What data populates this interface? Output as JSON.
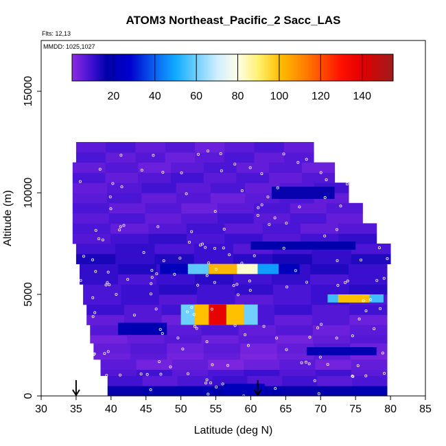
{
  "chart_data": {
    "type": "heatmap",
    "title": "ATOM3 Northeast_Pacific_2 Sacc_LAS",
    "flights_label": "Flts: 12,13",
    "mmdd_label": "MMDD: 1025,1027",
    "xlabel": "Latitude (deg N)",
    "ylabel": "Altitude (m)",
    "xlim": [
      30,
      85
    ],
    "ylim": [
      0,
      17500
    ],
    "x_ticks": [
      30,
      35,
      40,
      45,
      50,
      55,
      60,
      65,
      70,
      75,
      80,
      85
    ],
    "y_ticks": [
      0,
      5000,
      10000,
      15000
    ],
    "colorbar": {
      "min": 0,
      "max": 155,
      "ticks": [
        20,
        40,
        60,
        80,
        100,
        120,
        140
      ],
      "dividers": [
        20,
        40,
        60,
        80,
        100,
        120,
        140
      ],
      "stops": [
        {
          "v": 0,
          "c": "#8c2be2"
        },
        {
          "v": 10,
          "c": "#3a0fd0"
        },
        {
          "v": 17,
          "c": "#0000a8"
        },
        {
          "v": 28,
          "c": "#0000d0"
        },
        {
          "v": 40,
          "c": "#0a64f0"
        },
        {
          "v": 50,
          "c": "#10aaff"
        },
        {
          "v": 60,
          "c": "#6fd0ff"
        },
        {
          "v": 70,
          "c": "#cfeeff"
        },
        {
          "v": 80,
          "c": "#ffffe8"
        },
        {
          "v": 90,
          "c": "#fff070"
        },
        {
          "v": 100,
          "c": "#ffc000"
        },
        {
          "v": 110,
          "c": "#ff8c00"
        },
        {
          "v": 120,
          "c": "#ff5000"
        },
        {
          "v": 130,
          "c": "#ff1000"
        },
        {
          "v": 140,
          "c": "#e00000"
        },
        {
          "v": 155,
          "c": "#a01c1c"
        }
      ]
    },
    "grid": false,
    "domain_profile": [
      {
        "alt": 0,
        "lat_min": 39.5,
        "lat_max": 79.5
      },
      {
        "alt": 800,
        "lat_min": 38.5,
        "lat_max": 79.5
      },
      {
        "alt": 1600,
        "lat_min": 37.5,
        "lat_max": 79.5
      },
      {
        "alt": 2500,
        "lat_min": 37,
        "lat_max": 79.5
      },
      {
        "alt": 3500,
        "lat_min": 36.5,
        "lat_max": 79.5
      },
      {
        "alt": 4500,
        "lat_min": 36,
        "lat_max": 79.5
      },
      {
        "alt": 5500,
        "lat_min": 35.5,
        "lat_max": 79.5
      },
      {
        "alt": 6500,
        "lat_min": 35,
        "lat_max": 80
      },
      {
        "alt": 7500,
        "lat_min": 34.5,
        "lat_max": 78
      },
      {
        "alt": 8500,
        "lat_min": 34.5,
        "lat_max": 76
      },
      {
        "alt": 9500,
        "lat_min": 34.5,
        "lat_max": 74
      },
      {
        "alt": 10500,
        "lat_min": 34.5,
        "lat_max": 72
      },
      {
        "alt": 11500,
        "lat_min": 35,
        "lat_max": 69
      },
      {
        "alt": 12500,
        "lat_min": 35.5,
        "lat_max": 66
      }
    ],
    "background_values": [
      {
        "alt_min": 0,
        "alt_max": 500,
        "value": 18
      },
      {
        "alt_min": 500,
        "alt_max": 1300,
        "value": 8
      },
      {
        "alt_min": 1300,
        "alt_max": 2100,
        "value": 4
      },
      {
        "alt_min": 2100,
        "alt_max": 3000,
        "value": 5
      },
      {
        "alt_min": 3000,
        "alt_max": 4000,
        "value": 6
      },
      {
        "alt_min": 4000,
        "alt_max": 5000,
        "value": 8
      },
      {
        "alt_min": 5000,
        "alt_max": 6000,
        "value": 10
      },
      {
        "alt_min": 6000,
        "alt_max": 7000,
        "value": 12
      },
      {
        "alt_min": 7000,
        "alt_max": 8000,
        "value": 9
      },
      {
        "alt_min": 8000,
        "alt_max": 9000,
        "value": 7
      },
      {
        "alt_min": 9000,
        "alt_max": 10000,
        "value": 6
      },
      {
        "alt_min": 10000,
        "alt_max": 11000,
        "value": 7
      },
      {
        "alt_min": 11000,
        "alt_max": 12500,
        "value": 6
      }
    ],
    "features": [
      {
        "lat_min": 41,
        "lat_max": 48,
        "alt_min": 3000,
        "alt_max": 3600,
        "value": 20
      },
      {
        "lat_min": 56,
        "lat_max": 62,
        "alt_min": 0,
        "alt_max": 600,
        "value": 22
      },
      {
        "lat_min": 68,
        "lat_max": 78,
        "alt_min": 2000,
        "alt_max": 2400,
        "value": 20
      },
      {
        "lat_min": 60,
        "lat_max": 75,
        "alt_min": 7200,
        "alt_max": 7600,
        "value": 18
      },
      {
        "lat_min": 63,
        "lat_max": 72,
        "alt_min": 9700,
        "alt_max": 10300,
        "value": 16
      },
      {
        "lat_min": 47,
        "lat_max": 67,
        "alt_min": 6000,
        "alt_max": 6500,
        "value": 22
      },
      {
        "lat_min": 51,
        "lat_max": 54,
        "alt_min": 6000,
        "alt_max": 6500,
        "value": 58
      },
      {
        "lat_min": 54,
        "lat_max": 58,
        "alt_min": 6000,
        "alt_max": 6500,
        "value": 102
      },
      {
        "lat_min": 58,
        "lat_max": 61,
        "alt_min": 6000,
        "alt_max": 6500,
        "value": 82
      },
      {
        "lat_min": 61,
        "lat_max": 64,
        "alt_min": 6000,
        "alt_max": 6500,
        "value": 48
      },
      {
        "lat_min": 50,
        "lat_max": 61,
        "alt_min": 3500,
        "alt_max": 4500,
        "value": 60
      },
      {
        "lat_min": 52,
        "lat_max": 59,
        "alt_min": 3500,
        "alt_max": 4500,
        "value": 100
      },
      {
        "lat_min": 54,
        "lat_max": 56.5,
        "alt_min": 3500,
        "alt_max": 4500,
        "value": 138
      },
      {
        "lat_min": 71,
        "lat_max": 79,
        "alt_min": 4600,
        "alt_max": 5000,
        "value": 55
      },
      {
        "lat_min": 72.5,
        "lat_max": 77,
        "alt_min": 4600,
        "alt_max": 5000,
        "value": 100
      }
    ],
    "flight_markers": [
      {
        "lat": 35,
        "alt": 0
      },
      {
        "lat": 61,
        "alt": 0
      }
    ]
  }
}
